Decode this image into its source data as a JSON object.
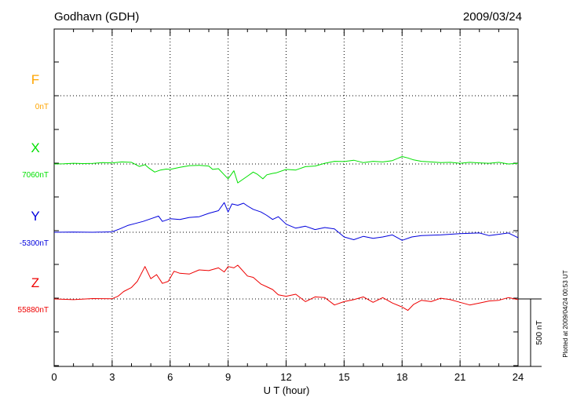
{
  "header": {
    "station": "Godhavn (GDH)",
    "date": "2009/03/24"
  },
  "footer_note": "Plotted at 2009/04/24 00:53 UT",
  "scale_bar_label": "500 nT",
  "chart_data": {
    "type": "line",
    "title": "Godhavn (GDH)",
    "xlabel": "U T (hour)",
    "ylabel": "",
    "xlim": [
      0,
      24
    ],
    "xticks": [
      "0",
      "3",
      "6",
      "9",
      "12",
      "15",
      "18",
      "21",
      "24"
    ],
    "grid": true,
    "scale_nT": 500,
    "series": [
      {
        "name": "F",
        "baseline_label": "0nT",
        "color": "#ffa500",
        "x": [],
        "y": []
      },
      {
        "name": "X",
        "baseline_label": "7060nT",
        "color": "#00e000",
        "x": [
          0,
          0.5,
          1,
          1.5,
          2,
          2.5,
          3,
          3.5,
          4,
          4.4,
          4.7,
          4.9,
          5.2,
          5.5,
          5.8,
          6,
          6.5,
          7,
          7.5,
          8,
          8.2,
          8.5,
          8.8,
          9,
          9.3,
          9.5,
          9.7,
          10,
          10.3,
          10.5,
          10.8,
          11,
          11.3,
          11.5,
          12,
          12.5,
          13,
          13.5,
          14,
          14.5,
          15,
          15.5,
          16,
          16.5,
          17,
          17.5,
          18,
          18.3,
          18.6,
          19,
          19.5,
          20,
          20.5,
          21,
          21.5,
          22,
          22.5,
          23,
          23.5,
          24
        ],
        "y": [
          0,
          2,
          5,
          3,
          4,
          10,
          8,
          15,
          12,
          -18,
          -5,
          -30,
          -60,
          -45,
          -38,
          -40,
          -25,
          -12,
          -10,
          -15,
          -40,
          -35,
          -80,
          -110,
          -50,
          -140,
          -120,
          -90,
          -60,
          -75,
          -110,
          -80,
          -70,
          -65,
          -40,
          -45,
          -20,
          -15,
          5,
          20,
          18,
          28,
          10,
          20,
          15,
          25,
          55,
          45,
          30,
          20,
          15,
          10,
          12,
          5,
          12,
          8,
          5,
          12,
          0,
          5
        ]
      },
      {
        "name": "Y",
        "baseline_label": "-5300nT",
        "color": "#0000dd",
        "x": [
          0,
          1,
          2,
          3,
          3.4,
          3.8,
          4.2,
          4.6,
          5,
          5.4,
          5.6,
          6,
          6.5,
          7,
          7.5,
          8,
          8.5,
          8.8,
          9,
          9.2,
          9.5,
          9.8,
          10,
          10.3,
          10.7,
          11,
          11.3,
          11.6,
          12,
          12.5,
          13,
          13.5,
          14,
          14.5,
          15,
          15.5,
          16,
          16.5,
          17,
          17.5,
          18,
          18.5,
          19,
          20,
          21,
          22,
          22.5,
          23,
          23.5,
          24
        ],
        "y": [
          0,
          2,
          0,
          3,
          25,
          50,
          65,
          80,
          100,
          120,
          80,
          100,
          95,
          110,
          115,
          140,
          160,
          220,
          150,
          210,
          200,
          215,
          195,
          170,
          150,
          125,
          95,
          115,
          60,
          30,
          45,
          20,
          35,
          25,
          -35,
          -55,
          -30,
          -45,
          -35,
          -20,
          -60,
          -35,
          -25,
          -20,
          -10,
          -5,
          -25,
          -15,
          -5,
          -40
        ]
      },
      {
        "name": "Z",
        "baseline_label": "55880nT",
        "color": "#ee0000",
        "x": [
          0,
          1,
          2,
          3,
          3.3,
          3.6,
          4,
          4.3,
          4.7,
          5,
          5.3,
          5.6,
          5.9,
          6.2,
          6.5,
          7,
          7.5,
          8,
          8.5,
          8.8,
          9,
          9.3,
          9.5,
          10,
          10.3,
          10.7,
          11,
          11.3,
          11.6,
          12,
          12.5,
          13,
          13.5,
          14,
          14.5,
          15,
          15.5,
          16,
          16.5,
          17,
          17.5,
          18,
          18.3,
          18.6,
          19,
          19.5,
          20,
          20.5,
          21,
          21.5,
          22,
          22.5,
          23,
          23.5,
          24
        ],
        "y": [
          0,
          -5,
          3,
          2,
          20,
          55,
          85,
          130,
          240,
          150,
          180,
          115,
          130,
          205,
          190,
          185,
          215,
          210,
          230,
          200,
          240,
          230,
          250,
          170,
          160,
          110,
          90,
          70,
          30,
          20,
          35,
          -20,
          15,
          10,
          -45,
          -20,
          -5,
          15,
          -25,
          10,
          -30,
          -60,
          -85,
          -40,
          -10,
          -20,
          5,
          -5,
          -25,
          -45,
          -30,
          -15,
          -10,
          10,
          -5
        ]
      }
    ]
  }
}
